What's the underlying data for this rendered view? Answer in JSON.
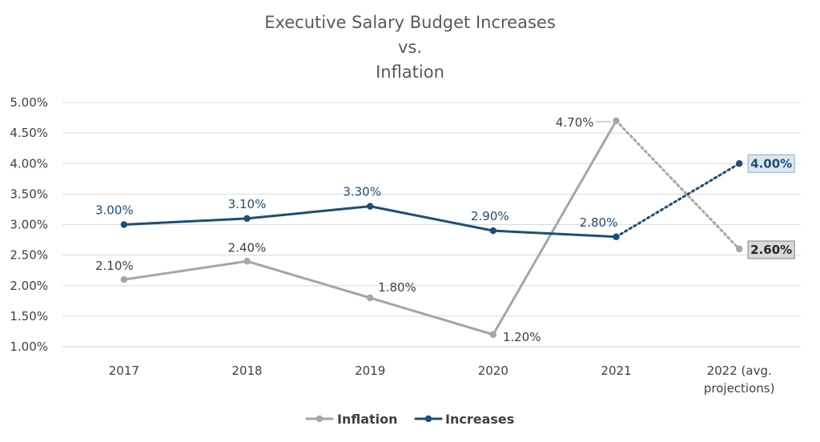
{
  "chart_data": {
    "type": "line",
    "title_lines": [
      "Executive Salary Budget Increases",
      "vs.",
      "Inflation"
    ],
    "categories": [
      [
        "2017"
      ],
      [
        "2018"
      ],
      [
        "2019"
      ],
      [
        "2020"
      ],
      [
        "2021"
      ],
      [
        "2022 (avg.",
        "projections)"
      ]
    ],
    "ylim": [
      1.0,
      5.0
    ],
    "yticks": [
      "1.00%",
      "1.50%",
      "2.00%",
      "2.50%",
      "3.00%",
      "3.50%",
      "4.00%",
      "4.50%",
      "5.00%"
    ],
    "ytick_values": [
      1.0,
      1.5,
      2.0,
      2.5,
      3.0,
      3.5,
      4.0,
      4.5,
      5.0
    ],
    "grid": true,
    "legend_position": "bottom",
    "series": [
      {
        "name": "Inflation",
        "color": "#a6a6a6",
        "values": [
          2.1,
          2.4,
          1.8,
          1.2,
          4.7,
          2.6
        ],
        "labels": [
          "2.10%",
          "2.40%",
          "1.80%",
          "1.20%",
          "4.70%",
          "2.60%"
        ],
        "projection_last": true
      },
      {
        "name": "Increases",
        "color": "#1f4e79",
        "values": [
          3.0,
          3.1,
          3.3,
          2.9,
          2.8,
          4.0
        ],
        "labels": [
          "3.00%",
          "3.10%",
          "3.30%",
          "2.90%",
          "2.80%",
          "4.00%"
        ],
        "projection_last": true
      }
    ]
  }
}
